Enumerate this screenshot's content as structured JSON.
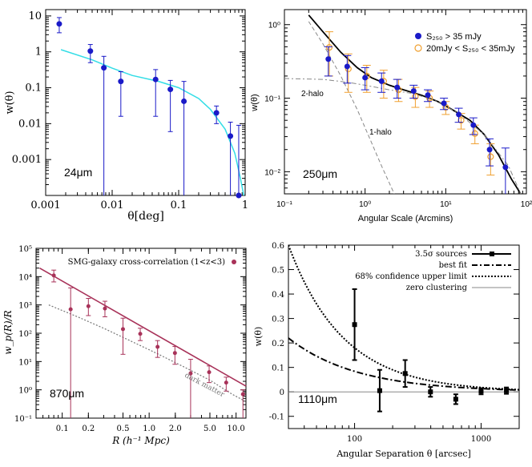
{
  "chart_data": [
    {
      "id": "p1",
      "type": "scatter",
      "xlabel": "θ[deg]",
      "ylabel": "w(θ)",
      "annotation": "24μm",
      "xscale": "log",
      "yscale": "log",
      "xlim": [
        0.001,
        1
      ],
      "ylim": [
        0.0001,
        15
      ],
      "xticks": [
        0.001,
        0.01,
        0.1,
        1
      ],
      "xticklabels": [
        "0.001",
        "0.01",
        "0.1",
        "1"
      ],
      "yticks": [
        0.001,
        0.01,
        0.1,
        1,
        10
      ],
      "yticklabels": [
        "0.001",
        "0.01",
        "0.1",
        "1",
        "10"
      ],
      "points": [
        {
          "x": 0.0016,
          "y": 6.0,
          "lo": 3.4,
          "hi": 9.0
        },
        {
          "x": 0.0047,
          "y": 1.05,
          "lo": 0.5,
          "hi": 1.6
        },
        {
          "x": 0.0075,
          "y": 0.36,
          "lo": 0.0001,
          "hi": 0.75
        },
        {
          "x": 0.0135,
          "y": 0.15,
          "lo": 0.016,
          "hi": 0.28
        },
        {
          "x": 0.045,
          "y": 0.17,
          "lo": 0.016,
          "hi": 0.32
        },
        {
          "x": 0.075,
          "y": 0.09,
          "lo": 0.006,
          "hi": 0.16
        },
        {
          "x": 0.12,
          "y": 0.042,
          "lo": 0.0001,
          "hi": 0.15
        },
        {
          "x": 0.37,
          "y": 0.02,
          "lo": 0.01,
          "hi": 0.031
        },
        {
          "x": 0.6,
          "y": 0.0045,
          "lo": 0.0001,
          "hi": 0.011
        },
        {
          "x": 0.8,
          "y": 0.0001,
          "lo": 0.0001,
          "hi": 0.009
        }
      ],
      "model": {
        "color": "#33dde6",
        "x": [
          0.0017,
          0.005,
          0.01,
          0.02,
          0.05,
          0.1,
          0.2,
          0.3,
          0.5,
          0.7,
          0.85,
          0.95
        ],
        "y": [
          1.15,
          0.6,
          0.35,
          0.22,
          0.15,
          0.1,
          0.05,
          0.025,
          0.007,
          0.0015,
          0.0003,
          0.0001
        ]
      },
      "colors": {
        "points": "#1a1ac8"
      }
    },
    {
      "id": "p2",
      "type": "scatter",
      "xlabel": "Angular Scale (Arcmins)",
      "ylabel": "w(θ)",
      "annotation": "250μm",
      "xscale": "log",
      "yscale": "log",
      "xlim": [
        0.1,
        100
      ],
      "ylim": [
        0.005,
        1.6
      ],
      "xticks": [
        0.1,
        1,
        10,
        100
      ],
      "xticklabels": [
        "10⁻¹",
        "10⁰",
        "10¹",
        "10²"
      ],
      "yticks": [
        0.01,
        0.1,
        1
      ],
      "yticklabels": [
        "10⁻²",
        "10⁻¹",
        "10⁰"
      ],
      "legend": {
        "placement": "top-right",
        "entries": [
          {
            "label": "S₂₅₀ > 35 mJy",
            "marker": "filled-circle",
            "color": "#1a1ac8"
          },
          {
            "label": "20mJy < S₂₅₀ < 35mJy",
            "marker": "open-circle",
            "color": "#f0a030"
          }
        ]
      },
      "series": [
        {
          "name": "S₂₅₀ > 35 mJy",
          "points": [
            {
              "x": 0.35,
              "y": 0.34,
              "lo": 0.2,
              "hi": 0.5
            },
            {
              "x": 0.6,
              "y": 0.27,
              "lo": 0.16,
              "hi": 0.38
            },
            {
              "x": 1.0,
              "y": 0.19,
              "lo": 0.13,
              "hi": 0.26
            },
            {
              "x": 1.6,
              "y": 0.17,
              "lo": 0.12,
              "hi": 0.22
            },
            {
              "x": 2.5,
              "y": 0.14,
              "lo": 0.1,
              "hi": 0.18
            },
            {
              "x": 4.0,
              "y": 0.125,
              "lo": 0.1,
              "hi": 0.15
            },
            {
              "x": 6.0,
              "y": 0.11,
              "lo": 0.09,
              "hi": 0.13
            },
            {
              "x": 9.5,
              "y": 0.085,
              "lo": 0.07,
              "hi": 0.1
            },
            {
              "x": 14.5,
              "y": 0.06,
              "lo": 0.047,
              "hi": 0.073
            },
            {
              "x": 22.0,
              "y": 0.043,
              "lo": 0.032,
              "hi": 0.054
            },
            {
              "x": 35.0,
              "y": 0.02,
              "lo": 0.012,
              "hi": 0.028
            },
            {
              "x": 55.0,
              "y": 0.0115,
              "lo": 0.005,
              "hi": 0.021
            }
          ]
        },
        {
          "name": "20mJy < S₂₅₀ < 35mJy",
          "points": [
            {
              "x": 0.36,
              "y": 0.49,
              "lo": 0.2,
              "hi": 0.8
            },
            {
              "x": 0.62,
              "y": 0.25,
              "lo": 0.12,
              "hi": 0.4
            },
            {
              "x": 1.05,
              "y": 0.2,
              "lo": 0.12,
              "hi": 0.28
            },
            {
              "x": 1.7,
              "y": 0.17,
              "lo": 0.1,
              "hi": 0.24
            },
            {
              "x": 2.6,
              "y": 0.13,
              "lo": 0.09,
              "hi": 0.18
            },
            {
              "x": 4.2,
              "y": 0.105,
              "lo": 0.075,
              "hi": 0.14
            },
            {
              "x": 6.3,
              "y": 0.1,
              "lo": 0.075,
              "hi": 0.125
            },
            {
              "x": 10.0,
              "y": 0.075,
              "lo": 0.06,
              "hi": 0.09
            },
            {
              "x": 15.5,
              "y": 0.05,
              "lo": 0.038,
              "hi": 0.062
            },
            {
              "x": 23.0,
              "y": 0.033,
              "lo": 0.024,
              "hi": 0.043
            },
            {
              "x": 36.0,
              "y": 0.016,
              "lo": 0.009,
              "hi": 0.024
            }
          ]
        }
      ],
      "curves": [
        {
          "label": "",
          "style": "solid-black",
          "x": [
            0.2,
            0.3,
            0.5,
            0.8,
            1.2,
            2,
            3,
            5,
            8,
            12,
            20,
            30,
            45,
            65,
            85
          ],
          "y": [
            1.35,
            0.8,
            0.42,
            0.26,
            0.19,
            0.15,
            0.13,
            0.11,
            0.09,
            0.07,
            0.05,
            0.032,
            0.017,
            0.008,
            0.005
          ]
        },
        {
          "label": "1-halo",
          "style": "dashed-gray",
          "x": [
            0.2,
            0.3,
            0.5,
            0.8,
            1.2,
            1.6,
            2.0,
            2.3
          ],
          "y": [
            1.1,
            0.55,
            0.2,
            0.07,
            0.025,
            0.012,
            0.007,
            0.005
          ]
        },
        {
          "label": "2-halo",
          "style": "dashdot-gray",
          "x": [
            0.1,
            0.3,
            0.6,
            1,
            2,
            4,
            8,
            15,
            30,
            60,
            85
          ],
          "y": [
            0.185,
            0.18,
            0.165,
            0.15,
            0.13,
            0.115,
            0.09,
            0.06,
            0.032,
            0.012,
            0.005
          ]
        }
      ]
    },
    {
      "id": "p3",
      "type": "scatter",
      "xlabel": "R (h⁻¹ Mpc)",
      "ylabel": "w_p(R)/R",
      "annotation": "870μm",
      "xscale": "log",
      "yscale": "log",
      "xlim": [
        0.05,
        13
      ],
      "ylim": [
        0.1,
        100000
      ],
      "xticks": [
        0.1,
        0.2,
        0.5,
        1,
        2,
        5,
        10
      ],
      "xticklabels": [
        "0.1",
        "0.2",
        "0.5",
        "1.0",
        "2.0",
        "5.0",
        "10.0"
      ],
      "yticks": [
        0.1,
        1,
        10,
        100,
        1000,
        10000,
        100000
      ],
      "yticklabels": [
        "10⁻¹",
        "10⁰",
        "10¹",
        "10²",
        "10³",
        "10⁴",
        "10⁵"
      ],
      "legend": {
        "placement": "top-right",
        "entries": [
          {
            "label": "SMG-galaxy cross-correlation (1<z<3)",
            "marker": "filled-circle",
            "color": "#a83259"
          }
        ]
      },
      "points": [
        {
          "x": 0.08,
          "y": 11000,
          "lo": 6500,
          "hi": 17000
        },
        {
          "x": 0.125,
          "y": 700,
          "lo": 0.1,
          "hi": 4000
        },
        {
          "x": 0.2,
          "y": 900,
          "lo": 420,
          "hi": 1700
        },
        {
          "x": 0.31,
          "y": 750,
          "lo": 380,
          "hi": 1350
        },
        {
          "x": 0.5,
          "y": 140,
          "lo": 18,
          "hi": 340
        },
        {
          "x": 0.79,
          "y": 95,
          "lo": 55,
          "hi": 150
        },
        {
          "x": 1.25,
          "y": 33,
          "lo": 14,
          "hi": 55
        },
        {
          "x": 1.98,
          "y": 20,
          "lo": 8,
          "hi": 34
        },
        {
          "x": 3.0,
          "y": 3.8,
          "lo": 0.1,
          "hi": 12
        },
        {
          "x": 4.9,
          "y": 4.2,
          "lo": 1.8,
          "hi": 7
        },
        {
          "x": 7.7,
          "y": 1.8,
          "lo": 0.9,
          "hi": 2.8
        },
        {
          "x": 12.0,
          "y": 0.7,
          "lo": 0.1,
          "hi": 1.0
        }
      ],
      "fit": {
        "x": [
          0.055,
          13
        ],
        "y": [
          20000,
          1.35
        ]
      },
      "dark_matter": {
        "label": "dark matter",
        "x": [
          0.07,
          0.15,
          0.3,
          0.6,
          1.2,
          2.5,
          5,
          9,
          13
        ],
        "y": [
          1000,
          380,
          150,
          55,
          20,
          6.5,
          2.2,
          0.7,
          0.38
        ]
      },
      "colors": {
        "series": "#a83259",
        "dark_matter": "#777777"
      }
    },
    {
      "id": "p4",
      "type": "scatter",
      "xlabel": "Angular Separation θ [arcsec]",
      "ylabel": "w(θ)",
      "annotation": "1110μm",
      "xscale": "log",
      "yscale": "linear",
      "xlim": [
        30,
        2000
      ],
      "ylim": [
        -0.15,
        0.6
      ],
      "xticks": [
        100,
        1000
      ],
      "xticklabels": [
        "100",
        "1000"
      ],
      "yticks": [
        -0.1,
        0,
        0.1,
        0.2,
        0.3,
        0.4,
        0.5,
        0.6
      ],
      "yticklabels": [
        "-0.1",
        "0",
        "0.1",
        "0.2",
        "0.3",
        "0.4",
        "0.5",
        "0.6"
      ],
      "legend": {
        "placement": "top-right",
        "entries": [
          {
            "label": "3.5σ sources",
            "style": "errorbar-square"
          },
          {
            "label": "best fit",
            "style": "dashdot"
          },
          {
            "label": "68% confidence upper limit",
            "style": "dotted"
          },
          {
            "label": "zero clustering",
            "style": "solid-gray"
          }
        ]
      },
      "points": [
        {
          "x": 100,
          "y": 0.275,
          "lo": 0.13,
          "hi": 0.42
        },
        {
          "x": 158,
          "y": 0.005,
          "lo": -0.08,
          "hi": 0.09
        },
        {
          "x": 251,
          "y": 0.075,
          "lo": 0.02,
          "hi": 0.13
        },
        {
          "x": 398,
          "y": 0.0,
          "lo": -0.02,
          "hi": 0.02
        },
        {
          "x": 631,
          "y": -0.03,
          "lo": -0.05,
          "hi": -0.01
        },
        {
          "x": 1000,
          "y": 0.003,
          "lo": -0.01,
          "hi": 0.015
        },
        {
          "x": 1585,
          "y": 0.005,
          "lo": -0.008,
          "hi": 0.018
        }
      ],
      "best_fit": {
        "A": 0.22,
        "x0": 30,
        "gamma": 0.8
      },
      "upper_limit": {
        "A": 0.6,
        "x0": 30,
        "gamma": 1.0
      }
    }
  ]
}
